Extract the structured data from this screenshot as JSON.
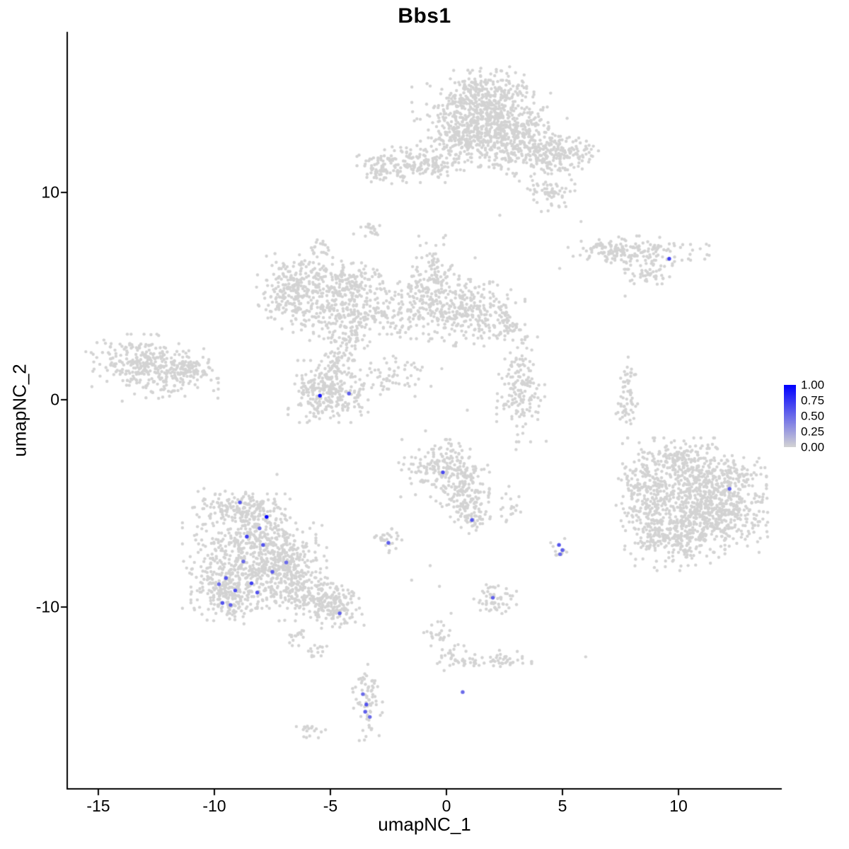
{
  "title": "Bbs1",
  "axes": {
    "x": {
      "label": "umapNC_1",
      "ticks": [
        -15,
        -10,
        -5,
        0,
        5,
        10
      ],
      "tick_labels": [
        "-15",
        "-10",
        "-5",
        "0",
        "5",
        "10"
      ],
      "range": [
        -16.34,
        14.45
      ]
    },
    "y": {
      "label": "umapNC_2",
      "ticks": [
        10,
        0,
        -10
      ],
      "tick_labels": [
        "10",
        "0",
        "-10"
      ],
      "range": [
        -18.77,
        17.75
      ]
    }
  },
  "legend": {
    "labels": [
      "1.00",
      "0.75",
      "0.50",
      "0.25",
      "0.00"
    ],
    "high_color": "#0000ff",
    "low_color": "#d3d3d3"
  },
  "chart_data": {
    "type": "scatter",
    "title": "Bbs1",
    "xlabel": "umapNC_1",
    "ylabel": "umapNC_2",
    "xlim": [
      -16.34,
      14.45
    ],
    "ylim": [
      -18.77,
      17.75
    ],
    "grid": false,
    "legend_position": "right",
    "point_color_low": "#d3d3d3",
    "point_color_high": "#0000ff",
    "point_radius_px": 2.2,
    "expressing_point_radius_px": 2.7,
    "seed": 42,
    "cluster_format": [
      "cx",
      "cy",
      "sx",
      "sy",
      "n"
    ],
    "background_clusters": [
      [
        1.7,
        14.8,
        0.9,
        0.55,
        220
      ],
      [
        1.5,
        13.3,
        1.3,
        0.9,
        500
      ],
      [
        2.9,
        12.5,
        1.0,
        0.7,
        260
      ],
      [
        4.4,
        11.7,
        0.8,
        0.5,
        140
      ],
      [
        5.4,
        11.9,
        0.5,
        0.35,
        50
      ],
      [
        4.5,
        10.0,
        0.45,
        0.4,
        60
      ],
      [
        0.6,
        12.6,
        0.6,
        0.5,
        90
      ],
      [
        -1.9,
        11.4,
        0.85,
        0.4,
        150
      ],
      [
        -0.3,
        11.3,
        0.6,
        0.25,
        40
      ],
      [
        -3.0,
        11.0,
        0.3,
        0.25,
        25
      ],
      [
        -3.2,
        8.2,
        0.25,
        0.2,
        18
      ],
      [
        -6.3,
        5.9,
        0.8,
        0.5,
        160
      ],
      [
        -6.8,
        4.7,
        0.6,
        0.5,
        90
      ],
      [
        -4.9,
        4.4,
        0.95,
        0.7,
        220
      ],
      [
        -4.0,
        5.6,
        0.6,
        0.5,
        110
      ],
      [
        -5.5,
        7.3,
        0.3,
        0.25,
        20
      ],
      [
        -4.2,
        3.0,
        0.35,
        0.7,
        70
      ],
      [
        -2.8,
        4.2,
        0.6,
        0.45,
        60
      ],
      [
        -0.8,
        4.9,
        0.95,
        0.85,
        240
      ],
      [
        1.2,
        4.2,
        0.95,
        0.7,
        230
      ],
      [
        -0.5,
        6.8,
        0.3,
        0.7,
        35
      ],
      [
        2.6,
        3.4,
        0.4,
        0.3,
        35
      ],
      [
        -13.4,
        1.9,
        1.0,
        0.55,
        200
      ],
      [
        -11.9,
        1.2,
        0.9,
        0.55,
        170
      ],
      [
        -10.8,
        1.6,
        0.4,
        0.3,
        40
      ],
      [
        -5.1,
        0.4,
        0.75,
        0.65,
        290
      ],
      [
        -4.9,
        1.9,
        0.3,
        0.5,
        40
      ],
      [
        -2.2,
        1.2,
        0.8,
        0.45,
        60
      ],
      [
        3.2,
        0.5,
        0.45,
        1.1,
        160
      ],
      [
        7.8,
        0.0,
        0.22,
        0.9,
        60
      ],
      [
        8.1,
        7.1,
        1.4,
        0.35,
        170
      ],
      [
        8.7,
        6.0,
        0.45,
        0.25,
        40
      ],
      [
        7.0,
        7.3,
        0.4,
        0.2,
        25
      ],
      [
        10.8,
        -4.6,
        1.3,
        1.2,
        650
      ],
      [
        9.7,
        -6.4,
        1.0,
        0.8,
        280
      ],
      [
        12.0,
        -5.6,
        0.8,
        0.8,
        200
      ],
      [
        8.5,
        -4.3,
        0.55,
        0.95,
        130
      ],
      [
        10.3,
        -2.9,
        0.8,
        0.4,
        90
      ],
      [
        12.4,
        -3.6,
        0.5,
        0.4,
        60
      ],
      [
        -0.1,
        -3.3,
        0.85,
        0.6,
        200
      ],
      [
        0.7,
        -4.6,
        0.5,
        0.6,
        110
      ],
      [
        1.2,
        -5.6,
        0.3,
        0.4,
        50
      ],
      [
        -2.6,
        -6.8,
        0.3,
        0.25,
        30
      ],
      [
        4.9,
        -7.2,
        0.2,
        0.25,
        12
      ],
      [
        2.7,
        -5.1,
        0.3,
        0.4,
        18
      ],
      [
        -8.9,
        -5.2,
        0.85,
        0.4,
        140
      ],
      [
        -8.5,
        -7.3,
        1.25,
        1.2,
        550
      ],
      [
        -9.4,
        -9.2,
        0.7,
        0.7,
        240
      ],
      [
        -7.0,
        -7.9,
        0.8,
        0.8,
        240
      ],
      [
        -5.9,
        -9.4,
        0.8,
        0.55,
        190
      ],
      [
        -4.7,
        -10.1,
        0.5,
        0.4,
        100
      ],
      [
        -6.5,
        -11.4,
        0.25,
        0.2,
        18
      ],
      [
        -5.6,
        -12.1,
        0.25,
        0.2,
        14
      ],
      [
        2.1,
        -9.7,
        0.4,
        0.35,
        55
      ],
      [
        -0.4,
        -11.5,
        0.25,
        0.5,
        25
      ],
      [
        0.3,
        -12.3,
        0.3,
        0.3,
        20
      ],
      [
        1.6,
        -12.6,
        0.9,
        0.2,
        45
      ],
      [
        2.6,
        -12.5,
        0.3,
        0.2,
        15
      ],
      [
        -3.4,
        -14.6,
        0.28,
        0.8,
        70
      ],
      [
        -5.9,
        -16.0,
        0.3,
        0.18,
        18
      ]
    ],
    "background_singles": [
      [
        -0.9,
        -1.5
      ],
      [
        3.0,
        -2.4
      ],
      [
        8.4,
        -2.4
      ],
      [
        4.3,
        -2.0
      ],
      [
        -1.5,
        -8.7
      ],
      [
        -0.3,
        -9.0
      ],
      [
        0.2,
        -10.3
      ],
      [
        -0.7,
        -8.0
      ],
      [
        -12.4,
        3.1
      ],
      [
        -4.0,
        8.0
      ],
      [
        2.3,
        8.9
      ],
      [
        7.7,
        5.0
      ],
      [
        5.8,
        8.6
      ],
      [
        -0.2,
        1.5
      ],
      [
        -7.3,
        -3.6
      ],
      [
        6.0,
        -12.4
      ],
      [
        0.9,
        -0.5
      ]
    ],
    "expressing_format": [
      "x",
      "y",
      "value"
    ],
    "expressing_cells": [
      [
        -5.45,
        0.2,
        0.9
      ],
      [
        -4.2,
        0.3,
        0.55
      ],
      [
        9.6,
        6.8,
        0.7
      ],
      [
        12.2,
        -4.3,
        0.55
      ],
      [
        -0.15,
        -3.5,
        0.65
      ],
      [
        1.1,
        -5.8,
        0.6
      ],
      [
        -2.5,
        -6.9,
        0.55
      ],
      [
        4.85,
        -7.0,
        0.6
      ],
      [
        5.0,
        -7.25,
        0.55
      ],
      [
        4.9,
        -7.45,
        0.5
      ],
      [
        -8.9,
        -4.95,
        0.6
      ],
      [
        -7.75,
        -5.65,
        1.0
      ],
      [
        -8.6,
        -6.6,
        0.7
      ],
      [
        -7.9,
        -7.0,
        0.6
      ],
      [
        -8.75,
        -7.8,
        0.5
      ],
      [
        -7.5,
        -8.3,
        0.55
      ],
      [
        -6.9,
        -7.85,
        0.5
      ],
      [
        -9.5,
        -8.6,
        0.6
      ],
      [
        -9.1,
        -9.2,
        0.65
      ],
      [
        -8.4,
        -8.85,
        0.7
      ],
      [
        -8.15,
        -9.3,
        0.6
      ],
      [
        -9.65,
        -9.8,
        0.6
      ],
      [
        -9.3,
        -9.9,
        0.55
      ],
      [
        -9.8,
        -8.9,
        0.5
      ],
      [
        -8.05,
        -6.2,
        0.5
      ],
      [
        -4.6,
        -10.3,
        0.55
      ],
      [
        2.0,
        -9.55,
        0.55
      ],
      [
        -3.6,
        -14.2,
        0.5
      ],
      [
        -3.45,
        -14.7,
        0.6
      ],
      [
        -3.5,
        -15.05,
        0.55
      ],
      [
        -3.3,
        -15.3,
        0.5
      ],
      [
        0.7,
        -14.1,
        0.5
      ]
    ]
  }
}
